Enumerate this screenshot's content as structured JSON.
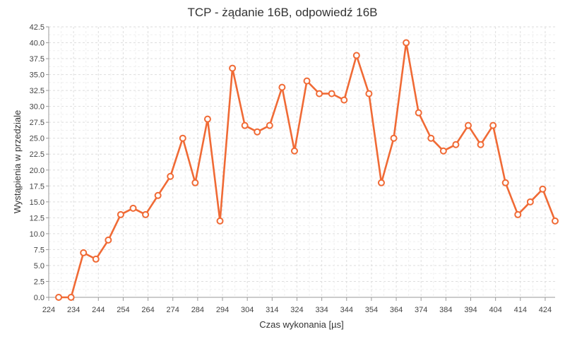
{
  "chart_data": {
    "type": "line",
    "title": "TCP - żądanie 16B, odpowiedź 16B",
    "xlabel": "Czas wykonania [µs]",
    "ylabel": "Wystąpienia w przedziale",
    "xlim": [
      224,
      428
    ],
    "ylim": [
      0,
      42.5
    ],
    "grid": true,
    "x_ticks": [
      "224",
      "234",
      "244",
      "254",
      "264",
      "274",
      "284",
      "294",
      "304",
      "314",
      "324",
      "334",
      "344",
      "354",
      "364",
      "374",
      "384",
      "394",
      "404",
      "414",
      "424"
    ],
    "y_ticks": [
      "0.0",
      "2.5",
      "5.0",
      "7.5",
      "10.0",
      "12.5",
      "15.0",
      "17.5",
      "20.0",
      "22.5",
      "25.0",
      "27.5",
      "30.0",
      "32.5",
      "35.0",
      "37.5",
      "40.0",
      "42.5"
    ],
    "series": [
      {
        "color": "#f06a35",
        "x": [
          228,
          233,
          238,
          243,
          248,
          253,
          258,
          263,
          268,
          273,
          278,
          283,
          288,
          293,
          298,
          303,
          308,
          313,
          318,
          323,
          328,
          333,
          338,
          343,
          348,
          353,
          358,
          363,
          368,
          373,
          378,
          383,
          388,
          393,
          398,
          403,
          408,
          413,
          418,
          423,
          428
        ],
        "values": [
          0,
          0,
          7,
          6,
          9,
          13,
          14,
          13,
          16,
          19,
          25,
          18,
          28,
          12,
          36,
          27,
          26,
          27,
          33,
          23,
          34,
          32,
          32,
          31,
          38,
          32,
          18,
          25,
          40,
          29,
          25,
          23,
          24,
          27,
          24,
          27,
          18,
          13,
          15,
          17,
          12
        ]
      }
    ]
  }
}
